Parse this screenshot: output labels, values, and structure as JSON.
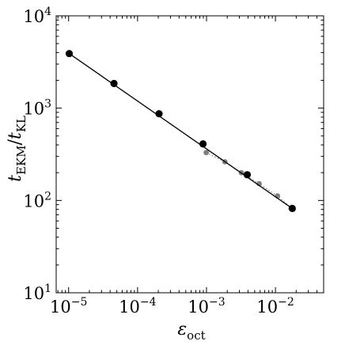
{
  "chart_data": {
    "type": "scatter",
    "title": "",
    "xlabel": {
      "base": "ε",
      "sub": "oct"
    },
    "ylabel": {
      "base": "t",
      "sub1": "EKM",
      "sep": "/",
      "base2": "t",
      "sub2": "KL"
    },
    "xscale": "log",
    "yscale": "log",
    "xlim": [
      6.6e-06,
      0.05
    ],
    "ylim": [
      10,
      10000
    ],
    "xticks": [
      {
        "value": 1e-05,
        "base": "10",
        "exp": "−5"
      },
      {
        "value": 0.0001,
        "base": "10",
        "exp": "−4"
      },
      {
        "value": 0.001,
        "base": "10",
        "exp": "−3"
      },
      {
        "value": 0.01,
        "base": "10",
        "exp": "−2"
      }
    ],
    "yticks": [
      {
        "value": 10,
        "base": "10",
        "exp": "1"
      },
      {
        "value": 100,
        "base": "10",
        "exp": "2"
      },
      {
        "value": 1000,
        "base": "10",
        "exp": "3"
      },
      {
        "value": 10000,
        "base": "10",
        "exp": "4"
      }
    ],
    "grid": false,
    "series": [
      {
        "color": "#000000",
        "line_style": "solid",
        "line_x": [
          1e-05,
          0.0171
        ],
        "points": [
          {
            "x": 1.02e-05,
            "y": 3900
          },
          {
            "x": 4.55e-05,
            "y": 1850
          },
          {
            "x": 0.000205,
            "y": 870
          },
          {
            "x": 0.00089,
            "y": 410
          },
          {
            "x": 0.0039,
            "y": 190
          },
          {
            "x": 0.0175,
            "y": 82
          }
        ]
      },
      {
        "color": "#808080",
        "line_style": "dotted",
        "points": [
          {
            "x": 0.00099,
            "y": 330
          },
          {
            "x": 0.00185,
            "y": 262
          },
          {
            "x": 0.0032,
            "y": 200
          },
          {
            "x": 0.0058,
            "y": 152
          },
          {
            "x": 0.0107,
            "y": 112
          },
          {
            "x": 0.018,
            "y": 80
          }
        ]
      }
    ]
  }
}
